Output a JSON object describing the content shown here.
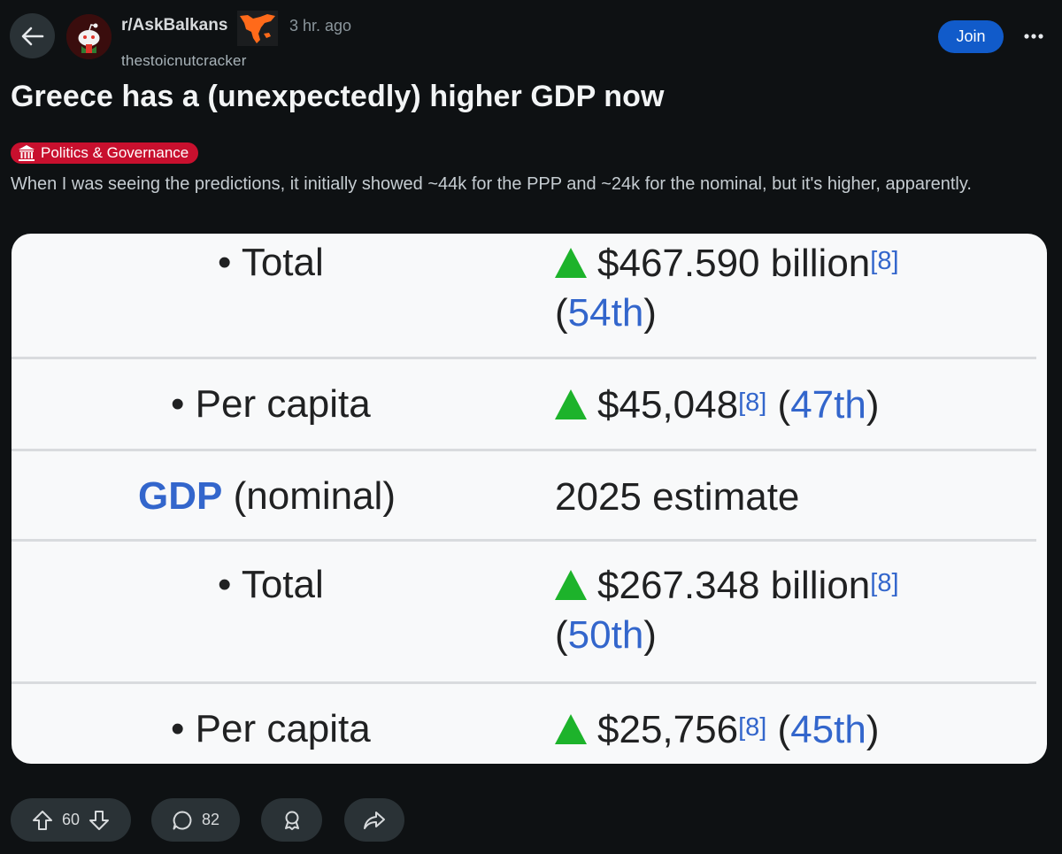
{
  "header": {
    "subreddit": "r/AskBalkans",
    "time": "3 hr. ago",
    "author": "thestoicnutcracker",
    "join_label": "Join"
  },
  "post": {
    "title": "Greece has a (unexpectedly) higher GDP now",
    "flair": "Politics & Governance",
    "body": "When I was seeing the predictions, it initially showed ~44k for the PPP and ~24k for the nominal, but it's higher, apparently."
  },
  "infobox": {
    "rows": [
      {
        "label": "• Total",
        "value": "$467.590 billion",
        "ref": "[8]",
        "rank": "54th"
      },
      {
        "label": "• Per capita",
        "value": "$45,048",
        "ref": "[8]",
        "rank": "47th"
      },
      {
        "label_link": "GDP",
        "label_rest": "(nominal)",
        "value": "2025 estimate"
      },
      {
        "label": "• Total",
        "value": "$267.348 billion",
        "ref": "[8]",
        "rank": "50th"
      },
      {
        "label": "• Per capita",
        "value": "$25,756",
        "ref": "[8]",
        "rank": "45th"
      }
    ],
    "trend_color": "#1db32b"
  },
  "actions": {
    "upvotes": "60",
    "comments": "82"
  },
  "colors": {
    "background": "#0e1113",
    "join": "#115bca",
    "flair": "#c8102e",
    "link": "#3366cc"
  },
  "icons": [
    "back-arrow-icon",
    "reddit-snoo-icon",
    "more-dots-icon",
    "government-building-icon",
    "upvote-icon",
    "downvote-icon",
    "comment-icon",
    "award-icon",
    "share-icon",
    "up-triangle-icon"
  ]
}
